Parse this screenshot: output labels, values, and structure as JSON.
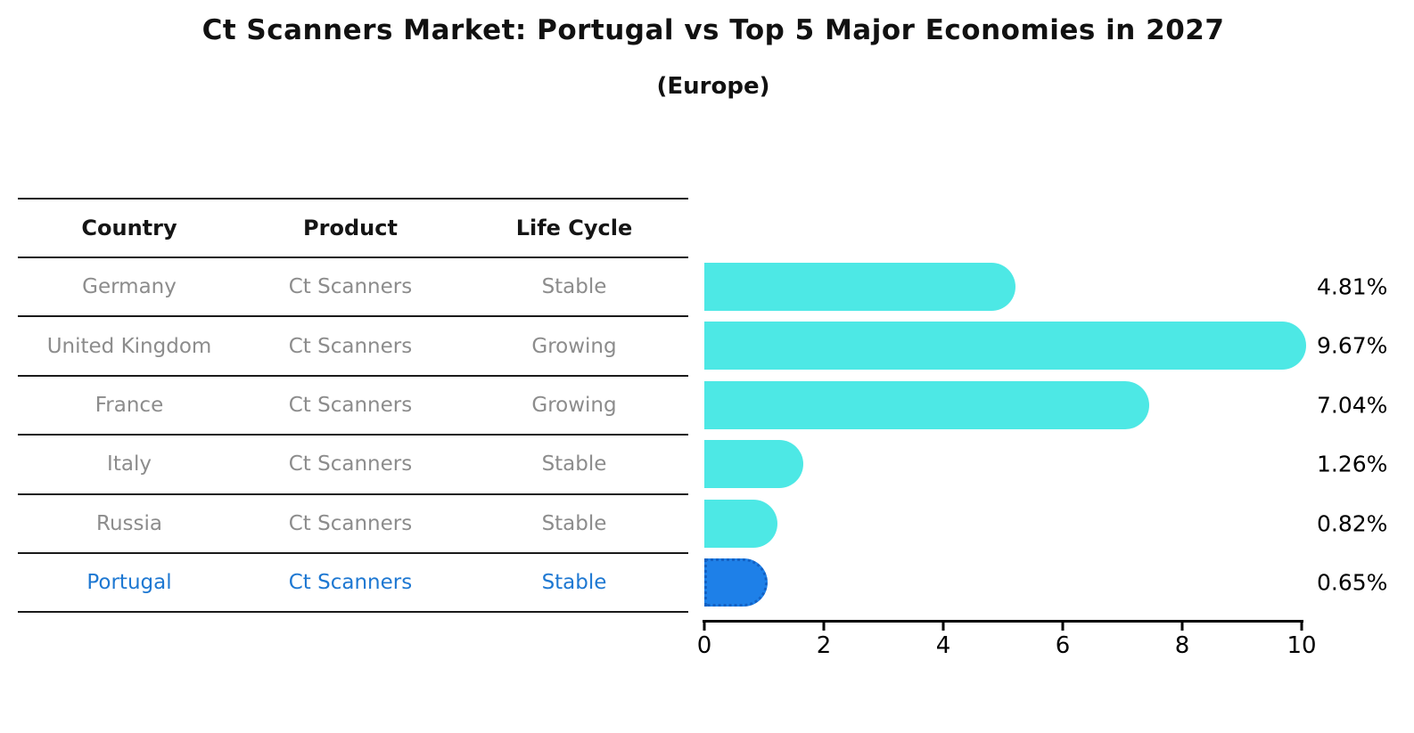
{
  "title": "Ct Scanners Market: Portugal vs Top 5 Major Economies in 2027",
  "subtitle": "(Europe)",
  "table": {
    "headers": [
      "Country",
      "Product",
      "Life Cycle"
    ],
    "rows": [
      {
        "country": "Germany",
        "product": "Ct Scanners",
        "life_cycle": "Stable",
        "highlight": false
      },
      {
        "country": "United Kingdom",
        "product": "Ct Scanners",
        "life_cycle": "Growing",
        "highlight": false
      },
      {
        "country": "France",
        "product": "Ct Scanners",
        "life_cycle": "Growing",
        "highlight": false
      },
      {
        "country": "Italy",
        "product": "Ct Scanners",
        "life_cycle": "Stable",
        "highlight": false
      },
      {
        "country": "Russia",
        "product": "Ct Scanners",
        "life_cycle": "Stable",
        "highlight": false
      },
      {
        "country": "Portugal",
        "product": "Ct Scanners",
        "life_cycle": "Stable",
        "highlight": true
      }
    ]
  },
  "chart_data": {
    "type": "bar",
    "orientation": "horizontal",
    "title": "Ct Scanners Market: Portugal vs Top 5 Major Economies in 2027",
    "subtitle": "(Europe)",
    "categories": [
      "Germany",
      "United Kingdom",
      "France",
      "Italy",
      "Russia",
      "Portugal"
    ],
    "values": [
      4.81,
      9.67,
      7.04,
      1.26,
      0.82,
      0.65
    ],
    "value_labels": [
      "4.81%",
      "9.67%",
      "7.04%",
      "1.26%",
      "0.82%",
      "0.65%"
    ],
    "xlim": [
      0,
      10
    ],
    "x_ticks": [
      "0",
      "2",
      "4",
      "6",
      "8",
      "10"
    ],
    "grid": false,
    "legend": false,
    "highlight_index": 5,
    "bar_color": "#4DE8E5",
    "highlight_bar_color": "#1E80E8",
    "highlight_border_color": "#1261C4"
  },
  "colors": {
    "background": "#FFFFFF",
    "text_primary": "#111111",
    "text_muted": "#8C8C8C",
    "highlight_text": "#1E78D2",
    "line": "#1A1A1A"
  }
}
